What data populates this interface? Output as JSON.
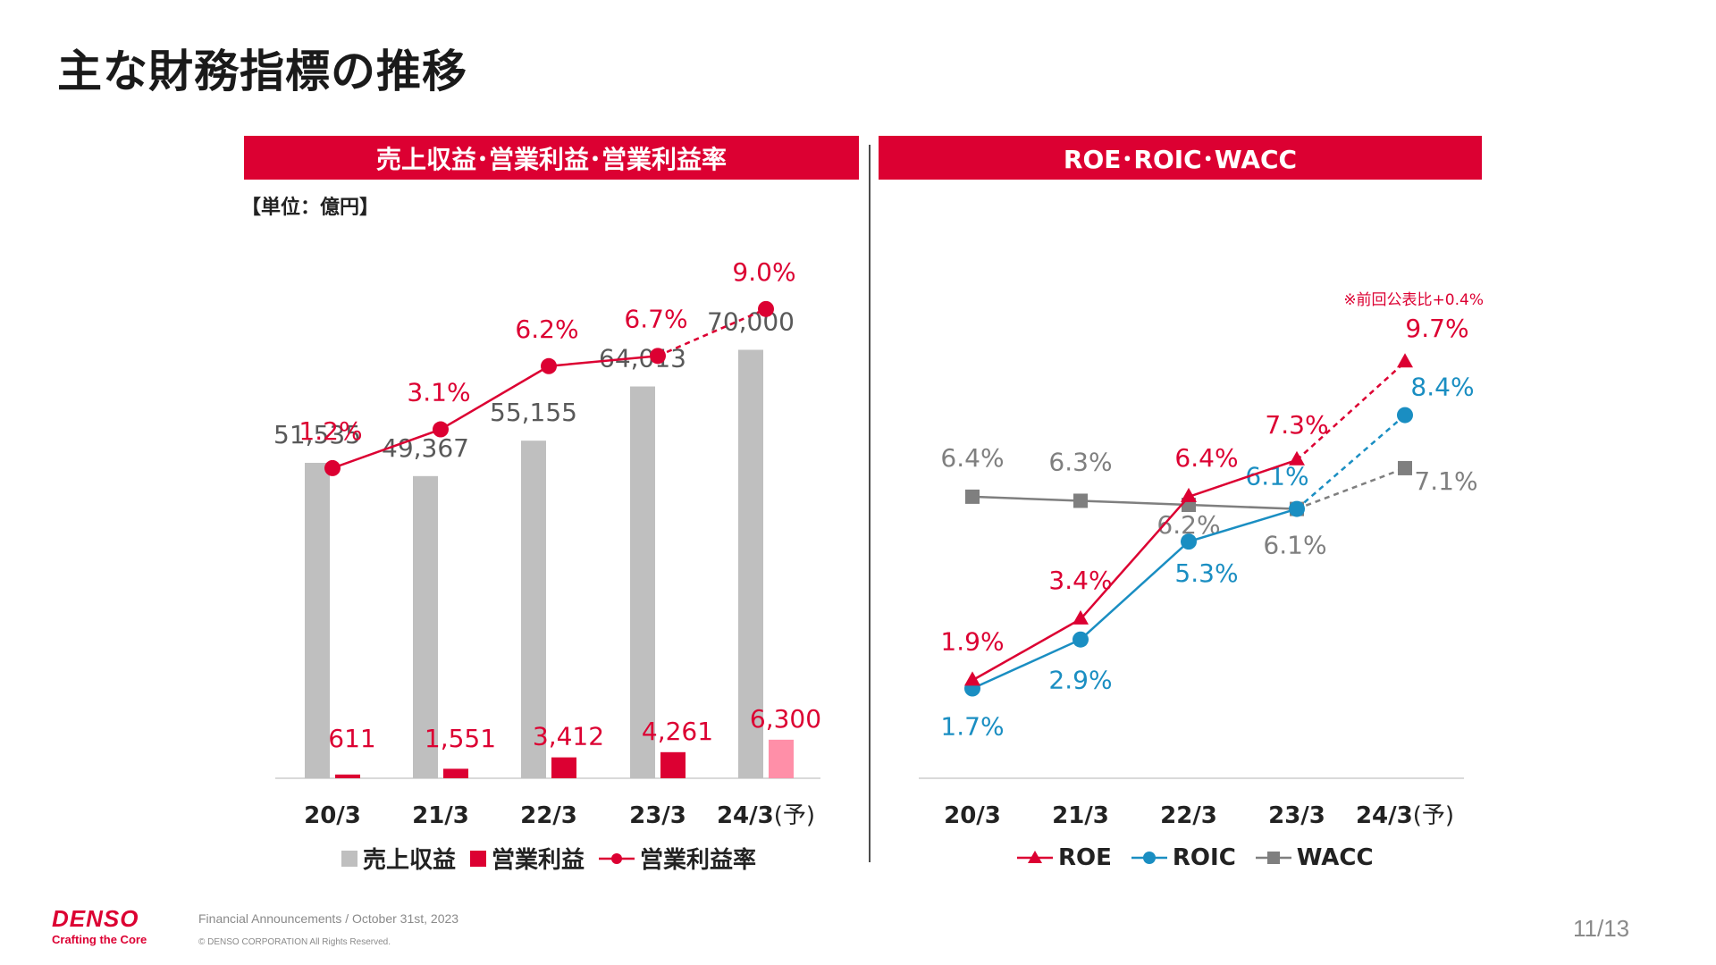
{
  "title": "主な財務指標の推移",
  "colors": {
    "accent": "#dc0032",
    "bar_gray": "#bfbfbf",
    "bar_forecast_pink": "#ff8fa8",
    "roic_blue": "#1a8ec2",
    "wacc_gray": "#7f7f7f",
    "axis_line": "#d9d9d9"
  },
  "left_panel": {
    "header": "売上収益･営業利益･営業利益率",
    "unit": "【単位：億円】"
  },
  "right_panel": {
    "header": "ROE･ROIC･WACC",
    "note": "※前回公表比+0.4%"
  },
  "chart_data": [
    {
      "type": "bar",
      "title": "売上収益･営業利益･営業利益率",
      "unit": "【単位：億円】",
      "categories": [
        "20/3",
        "21/3",
        "22/3",
        "23/3",
        "24/3"
      ],
      "category_suffix": [
        "",
        "",
        "",
        "",
        "(予)"
      ],
      "forecast_index": 4,
      "series": [
        {
          "name": "売上収益",
          "kind": "bar",
          "color": "#bfbfbf",
          "forecast_color": "#bfbfbf",
          "values": [
            51535,
            49367,
            55155,
            64013,
            70000
          ],
          "labels": [
            "51,535",
            "49,367",
            "55,155",
            "64,013",
            "70,000"
          ]
        },
        {
          "name": "営業利益",
          "kind": "bar",
          "color": "#dc0032",
          "forecast_color": "#ff8fa8",
          "values": [
            611,
            1551,
            3412,
            4261,
            6300
          ],
          "labels": [
            "611",
            "1,551",
            "3,412",
            "4,261",
            "6,300"
          ]
        },
        {
          "name": "営業利益率",
          "kind": "line",
          "color": "#dc0032",
          "values": [
            1.2,
            3.1,
            6.2,
            6.7,
            9.0
          ],
          "labels": [
            "1.2%",
            "3.1%",
            "6.2%",
            "6.7%",
            "9.0%"
          ]
        }
      ],
      "ylim": [
        0,
        80000
      ],
      "ylim_rate": [
        -14,
        10
      ],
      "legend": [
        "売上収益",
        "営業利益",
        "営業利益率"
      ]
    },
    {
      "type": "line",
      "title": "ROE･ROIC･WACC",
      "categories": [
        "20/3",
        "21/3",
        "22/3",
        "23/3",
        "24/3"
      ],
      "category_suffix": [
        "",
        "",
        "",
        "",
        "(予)"
      ],
      "forecast_index": 4,
      "series": [
        {
          "name": "ROE",
          "marker": "triangle",
          "color": "#dc0032",
          "values": [
            1.9,
            3.4,
            6.4,
            7.3,
            9.7
          ],
          "labels": [
            "1.9%",
            "3.4%",
            "6.4%",
            "7.3%",
            "9.7%"
          ]
        },
        {
          "name": "ROIC",
          "marker": "circle",
          "color": "#1a8ec2",
          "values": [
            1.7,
            2.9,
            5.3,
            6.1,
            8.4
          ],
          "labels": [
            "1.7%",
            "2.9%",
            "5.3%",
            "6.1%",
            "8.4%"
          ]
        },
        {
          "name": "WACC",
          "marker": "square",
          "color": "#7f7f7f",
          "values": [
            6.4,
            6.3,
            6.2,
            6.1,
            7.1
          ],
          "labels": [
            "6.4%",
            "6.3%",
            "6.2%",
            "6.1%",
            "7.1%"
          ]
        }
      ],
      "ylim": [
        -0.5,
        11.5
      ],
      "note": "※前回公表比+0.4%",
      "legend": [
        "ROE",
        "ROIC",
        "WACC"
      ]
    }
  ],
  "footer": {
    "brand": "DENSO",
    "tagline": "Crafting the Core",
    "info": "Financial Announcements / October 31st, 2023",
    "copyright": "© DENSO CORPORATION All Rights Reserved.",
    "page": "11/13"
  }
}
